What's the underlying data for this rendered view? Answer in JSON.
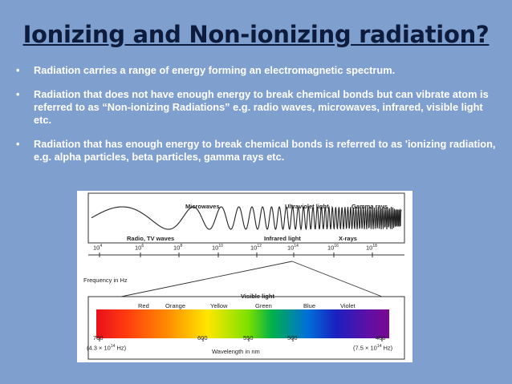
{
  "slide": {
    "title": "Ionizing and Non-ionizing radiation?",
    "bullets": [
      {
        "marker": "•",
        "text": "Radiation carries a range of energy forming an electromagnetic spectrum."
      },
      {
        "marker": "•",
        "text": "Radiation that does not have enough energy to break chemical bonds but can vibrate atom is referred to as “Non-ionizing Radiations” e.g. radio waves, microwaves, infrared, visible light etc."
      },
      {
        "marker": "•",
        "text": "Radiation that has enough energy to break chemical bonds is referred to as 'ionizing radiation, e.g. alpha particles, beta particles, gamma rays etc."
      }
    ]
  },
  "figure": {
    "wave_labels": {
      "microwaves": "Microwaves",
      "ultraviolet": "Ultraviolet light",
      "gamma": "Gamma rays",
      "radio": "Radio, TV waves",
      "infrared": "Infrared light",
      "xrays": "X-rays"
    },
    "frequency_ticks": [
      {
        "base": "10",
        "exp": "4"
      },
      {
        "base": "10",
        "exp": "6"
      },
      {
        "base": "10",
        "exp": "8"
      },
      {
        "base": "10",
        "exp": "10"
      },
      {
        "base": "10",
        "exp": "12"
      },
      {
        "base": "10",
        "exp": "14"
      },
      {
        "base": "10",
        "exp": "16"
      },
      {
        "base": "10",
        "exp": "18"
      }
    ],
    "frequency_axis_label": "Frequency in Hz",
    "visible_title": "Visible light",
    "colors": [
      "Red",
      "Orange",
      "Yellow",
      "Green",
      "Blue",
      "Violet"
    ],
    "wavelength_ticks": [
      "700",
      "600",
      "550",
      "500",
      "400"
    ],
    "left_freq": {
      "prefix": "(4.3 × 10",
      "exp": "14",
      "suffix": " Hz)"
    },
    "right_freq": {
      "prefix": "(7.5 × 10",
      "exp": "14",
      "suffix": " Hz)"
    },
    "wavelength_axis_label": "Wavelength in nm"
  }
}
